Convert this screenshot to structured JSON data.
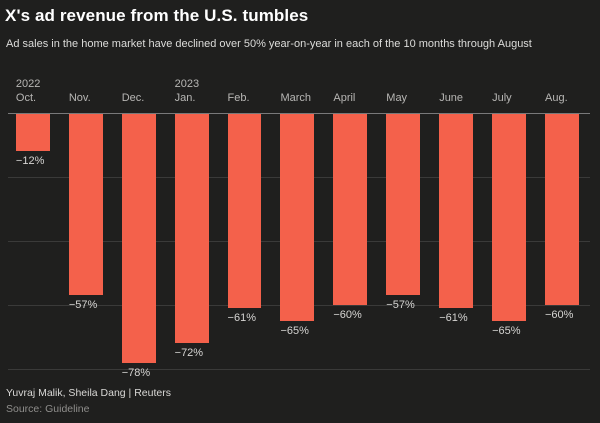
{
  "header": {
    "title": "X's ad revenue from the U.S. tumbles",
    "subtitle": "Ad sales in the home market have declined over 50% year-on-year in each of the 10 months through August"
  },
  "chart_data": {
    "type": "bar",
    "title": "X's ad revenue from the U.S. tumbles",
    "categories": [
      {
        "year": "2022",
        "month": "Oct."
      },
      {
        "year": "",
        "month": "Nov."
      },
      {
        "year": "",
        "month": "Dec."
      },
      {
        "year": "2023",
        "month": "Jan."
      },
      {
        "year": "",
        "month": "Feb."
      },
      {
        "year": "",
        "month": "March"
      },
      {
        "year": "",
        "month": "April"
      },
      {
        "year": "",
        "month": "May"
      },
      {
        "year": "",
        "month": "June"
      },
      {
        "year": "",
        "month": "July"
      },
      {
        "year": "",
        "month": "Aug."
      }
    ],
    "values": [
      -12,
      -57,
      -78,
      -72,
      -61,
      -65,
      -60,
      -57,
      -61,
      -65,
      -60
    ],
    "labels": [
      "−12%",
      "−57%",
      "−78%",
      "−72%",
      "−61%",
      "−65%",
      "−60%",
      "−57%",
      "−61%",
      "−65%",
      "−60%"
    ],
    "bar_color": "#f4614b",
    "background_color": "#1f1f1e",
    "ylabel": "",
    "xlabel": "",
    "ylim": [
      -80,
      0
    ],
    "gridlines": [
      -20,
      -40,
      -60,
      -80
    ],
    "legend": "none",
    "value_label_position": "below-bar"
  },
  "footer": {
    "byline": "Yuvraj Malik, Sheila Dang | Reuters",
    "source": "Source: Guideline"
  }
}
